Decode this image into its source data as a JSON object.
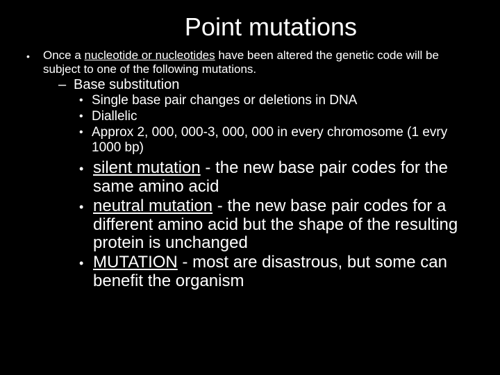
{
  "colors": {
    "background": "#000000",
    "text": "#ffffff"
  },
  "typography": {
    "family": "Comic Sans MS",
    "title_size": 36,
    "body_small_size": 17,
    "level2_size": 20,
    "level3_size": 19,
    "big_size": 24
  },
  "title": "Point mutations",
  "lead": {
    "prefix": "Once a ",
    "underlined": "nucleotide or nucleotides",
    "suffix": " have been altered the genetic code will be subject to one of the following mutations."
  },
  "level2_item": "Base substitution",
  "level3_items": [
    "Single base pair changes or deletions in DNA",
    "Diallelic",
    "Approx 2, 000, 000-3, 000, 000 in every chromosome (1 evry 1000 bp)"
  ],
  "big_items": [
    {
      "label": "silent mutation",
      "rest": " - the new base pair codes for the same amino acid"
    },
    {
      "label": "neutral mutation",
      "rest": " - the new base pair codes for a different amino acid but the shape of the resulting protein is unchanged"
    },
    {
      "label": "MUTATION",
      "rest": " - most are disastrous, but some can benefit the organism"
    }
  ]
}
